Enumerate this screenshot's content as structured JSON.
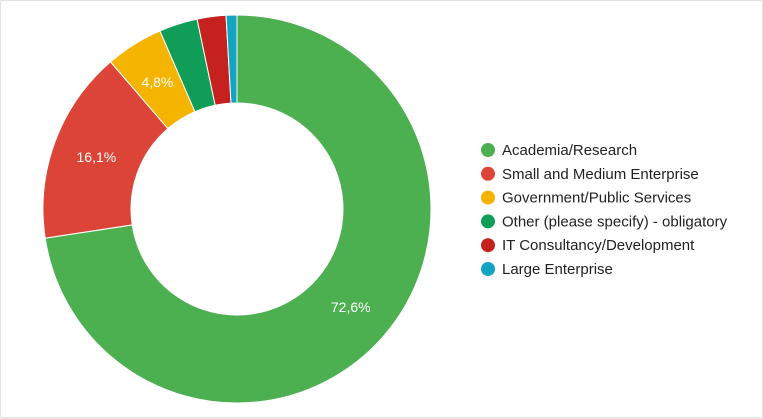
{
  "chart_data": {
    "type": "pie",
    "donut": true,
    "legend_position": "right",
    "categories": [
      "Academia/Research",
      "Small and Medium Enterprise",
      "Government/Public Services",
      "Other (please specify) - obligatory",
      "IT Consultancy/Development",
      "Large Enterprise"
    ],
    "values": [
      72.6,
      16.1,
      4.8,
      3.2,
      2.4,
      0.9
    ],
    "slice_labels": [
      "72,6%",
      "16,1%",
      "4,8%",
      "",
      "",
      ""
    ],
    "colors": [
      "#4caf50",
      "#db4437",
      "#f4b400",
      "#0f9d58",
      "#c5221f",
      "#12a4c2"
    ]
  }
}
